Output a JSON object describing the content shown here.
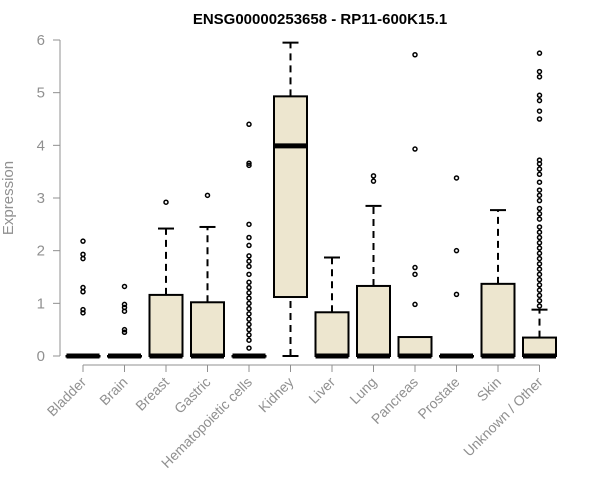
{
  "chart_data": {
    "type": "boxplot",
    "title": "ENSG00000253658 - RP11-600K15.1",
    "xlabel": "",
    "ylabel": "Expression",
    "ylim": [
      0,
      6
    ],
    "yticks": [
      0,
      1,
      2,
      3,
      4,
      5,
      6
    ],
    "grid": false,
    "colors": {
      "box_fill": "#ede6cf",
      "stroke": "#000000",
      "axis": "#909090",
      "text": "#909090"
    },
    "categories": [
      "Bladder",
      "Brain",
      "Breast",
      "Gastric",
      "Hematopoietic cells",
      "Kidney",
      "Liver",
      "Lung",
      "Pancreas",
      "Prostate",
      "Skin",
      "Unknown / Other"
    ],
    "boxes": [
      {
        "category": "Bladder",
        "q1": 0,
        "median": 0,
        "q3": 0,
        "whisker_low": 0,
        "whisker_high": 0,
        "outliers": [
          0.82,
          0.88,
          1.22,
          1.3,
          1.85,
          1.93,
          2.18
        ]
      },
      {
        "category": "Brain",
        "q1": 0,
        "median": 0,
        "q3": 0,
        "whisker_low": 0,
        "whisker_high": 0,
        "outliers": [
          0.45,
          0.5,
          0.85,
          0.92,
          0.98,
          1.32
        ]
      },
      {
        "category": "Breast",
        "q1": 0,
        "median": 0,
        "q3": 1.16,
        "whisker_low": 0,
        "whisker_high": 2.42,
        "outliers": [
          2.92
        ]
      },
      {
        "category": "Gastric",
        "q1": 0,
        "median": 0,
        "q3": 1.02,
        "whisker_low": 0,
        "whisker_high": 2.45,
        "outliers": [
          3.05
        ]
      },
      {
        "category": "Hematopoietic cells",
        "q1": 0,
        "median": 0,
        "q3": 0,
        "whisker_low": 0,
        "whisker_high": 0,
        "outliers": [
          0.15,
          0.3,
          0.4,
          0.5,
          0.6,
          0.7,
          0.8,
          0.9,
          1.0,
          1.1,
          1.2,
          1.3,
          1.4,
          1.55,
          1.7,
          1.8,
          1.9,
          2.1,
          2.25,
          2.5,
          3.62,
          3.66,
          4.4
        ]
      },
      {
        "category": "Kidney",
        "q1": 1.12,
        "median": 3.99,
        "q3": 4.93,
        "whisker_low": 0,
        "whisker_high": 5.95,
        "outliers": []
      },
      {
        "category": "Liver",
        "q1": 0,
        "median": 0,
        "q3": 0.83,
        "whisker_low": 0,
        "whisker_high": 1.87,
        "outliers": []
      },
      {
        "category": "Lung",
        "q1": 0,
        "median": 0,
        "q3": 1.33,
        "whisker_low": 0,
        "whisker_high": 2.85,
        "outliers": [
          3.32,
          3.42
        ]
      },
      {
        "category": "Pancreas",
        "q1": 0,
        "median": 0,
        "q3": 0.36,
        "whisker_low": 0,
        "whisker_high": 0.36,
        "outliers": [
          0.98,
          1.55,
          1.68,
          3.93,
          5.72
        ]
      },
      {
        "category": "Prostate",
        "q1": 0,
        "median": 0,
        "q3": 0,
        "whisker_low": 0,
        "whisker_high": 0,
        "outliers": [
          1.17,
          2.0,
          3.38
        ]
      },
      {
        "category": "Skin",
        "q1": 0,
        "median": 0,
        "q3": 1.37,
        "whisker_low": 0,
        "whisker_high": 2.77,
        "outliers": []
      },
      {
        "category": "Unknown / Other",
        "q1": 0,
        "median": 0,
        "q3": 0.35,
        "whisker_low": 0,
        "whisker_high": 0.88,
        "outliers": [
          0.95,
          1.05,
          1.15,
          1.25,
          1.35,
          1.45,
          1.55,
          1.65,
          1.75,
          1.85,
          1.95,
          2.05,
          2.15,
          2.25,
          2.35,
          2.45,
          2.6,
          2.7,
          2.8,
          2.95,
          3.05,
          3.15,
          3.3,
          3.45,
          3.55,
          3.65,
          3.72,
          4.5,
          4.65,
          4.85,
          4.95,
          5.3,
          5.4,
          5.75
        ]
      }
    ]
  }
}
